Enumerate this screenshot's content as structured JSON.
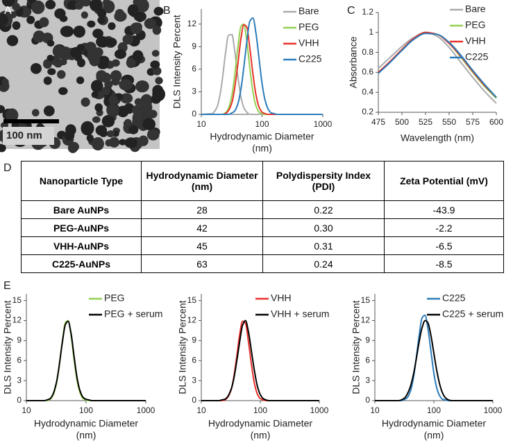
{
  "image": {
    "panel_label": "A",
    "scale_bar": "100 nm"
  },
  "chart_data": [
    {
      "type": "line",
      "panel_label": "B",
      "ylabel": "DLS Intensity Percent",
      "xlabel": [
        "Hydrodynamic Diameter",
        "(nm)"
      ],
      "log_x": true,
      "xlim": [
        10,
        1000
      ],
      "xticks": [
        10,
        100,
        1000
      ],
      "ylim": [
        0,
        14
      ],
      "yticks": [
        0,
        3,
        6,
        9,
        12
      ],
      "legend": "upper right",
      "x": [
        10,
        15,
        18,
        20,
        22,
        25,
        28,
        32,
        35,
        40,
        45,
        50,
        56,
        63,
        71,
        79,
        89,
        100,
        112,
        126,
        141,
        158,
        178,
        200,
        300,
        1000
      ],
      "series": [
        {
          "name": "Bare",
          "color": "#aaaaaa",
          "values": [
            0,
            0.1,
            0.9,
            2.3,
            4.4,
            8.1,
            10.5,
            10.6,
            8.8,
            5.0,
            2.3,
            0.9,
            0.3,
            0,
            0,
            0,
            0,
            0,
            0,
            0,
            0,
            0,
            0,
            0,
            0,
            0
          ]
        },
        {
          "name": "PEG",
          "color": "#92d050",
          "values": [
            0,
            0,
            0,
            0,
            0,
            0.2,
            0.8,
            2.6,
            4.8,
            8.9,
            11.7,
            12.0,
            9.8,
            6.1,
            2.9,
            1.2,
            0.3,
            0.1,
            0,
            0,
            0,
            0,
            0,
            0,
            0,
            0
          ]
        },
        {
          "name": "VHH",
          "color": "#e8302a",
          "values": [
            0,
            0,
            0,
            0,
            0,
            0.1,
            0.5,
            1.6,
            3.2,
            6.7,
            10.1,
            11.9,
            11.6,
            8.8,
            5.3,
            2.7,
            1.0,
            0.3,
            0.1,
            0,
            0,
            0,
            0,
            0,
            0,
            0
          ]
        },
        {
          "name": "C225",
          "color": "#2b7bba",
          "values": [
            0,
            0,
            0,
            0,
            0,
            0,
            0,
            0.2,
            0.4,
            1.4,
            3.4,
            6.2,
            9.6,
            12.4,
            12.8,
            10.9,
            7.5,
            4.1,
            1.9,
            0.7,
            0.2,
            0.1,
            0,
            0,
            0,
            0
          ]
        }
      ]
    },
    {
      "type": "line",
      "panel_label": "C",
      "ylabel": "Absorbance",
      "xlabel": [
        "Wavelength (nm)"
      ],
      "log_x": false,
      "xlim": [
        475,
        600
      ],
      "xticks": [
        475,
        500,
        525,
        550,
        575,
        600
      ],
      "ylim": [
        0.2,
        1.2
      ],
      "yticks": [
        0.2,
        0.4,
        0.6,
        0.8,
        1,
        1.2
      ],
      "legend": "upper right",
      "x": [
        475,
        487.5,
        500,
        512.5,
        525,
        537.5,
        550,
        562.5,
        575,
        587.5,
        600
      ],
      "series": [
        {
          "name": "Bare",
          "color": "#aaaaaa",
          "values": [
            0.64,
            0.75,
            0.86,
            0.95,
            1.0,
            0.96,
            0.85,
            0.7,
            0.55,
            0.41,
            0.29
          ]
        },
        {
          "name": "PEG",
          "color": "#92d050",
          "values": [
            0.6,
            0.71,
            0.83,
            0.94,
            1.0,
            0.98,
            0.89,
            0.75,
            0.6,
            0.46,
            0.34
          ]
        },
        {
          "name": "VHH",
          "color": "#e8302a",
          "values": [
            0.6,
            0.71,
            0.83,
            0.94,
            1.0,
            0.98,
            0.89,
            0.76,
            0.61,
            0.47,
            0.35
          ]
        },
        {
          "name": "C225",
          "color": "#2b7bba",
          "values": [
            0.59,
            0.7,
            0.82,
            0.93,
            0.99,
            0.98,
            0.9,
            0.77,
            0.62,
            0.48,
            0.35
          ]
        }
      ]
    },
    {
      "type": "line",
      "panel_label": "E",
      "ylabel": "DLS Intensity Percent",
      "xlabel": [
        "Hydrodynamic Diameter",
        "(nm)"
      ],
      "log_x": true,
      "xlim": [
        10,
        1000
      ],
      "xticks": [
        10,
        100,
        1000
      ],
      "ylim": [
        0,
        16
      ],
      "yticks": [
        0,
        3,
        6,
        9,
        12,
        15
      ],
      "legend": "upper right",
      "x": [
        10,
        15,
        18,
        20,
        22,
        25,
        28,
        32,
        35,
        40,
        45,
        50,
        56,
        63,
        71,
        79,
        89,
        100,
        112,
        126,
        141,
        158,
        178,
        200,
        300,
        1000
      ],
      "series": [
        {
          "name": "PEG",
          "color": "#92d050",
          "values": [
            0,
            0,
            0,
            0,
            0,
            0.2,
            0.8,
            2.6,
            4.8,
            8.9,
            11.7,
            12.0,
            9.8,
            6.1,
            2.9,
            1.2,
            0.3,
            0.1,
            0,
            0,
            0,
            0,
            0,
            0,
            0,
            0
          ]
        },
        {
          "name": "PEG + serum",
          "color": "#000000",
          "values": [
            0,
            0,
            0,
            0,
            0.1,
            0.3,
            1.0,
            2.8,
            4.9,
            8.7,
            11.4,
            11.9,
            10.1,
            6.6,
            3.3,
            1.5,
            0.5,
            0.2,
            0.1,
            0,
            0,
            0,
            0,
            0,
            0,
            0
          ]
        }
      ]
    },
    {
      "type": "line",
      "ylabel": "DLS Intensity Percent",
      "xlabel": [
        "Hydrodynamic Diameter",
        "(nm)"
      ],
      "log_x": true,
      "xlim": [
        10,
        1000
      ],
      "xticks": [
        10,
        100,
        1000
      ],
      "ylim": [
        0,
        16
      ],
      "yticks": [
        0,
        3,
        6,
        9,
        12,
        15
      ],
      "legend": "upper right",
      "x": [
        10,
        15,
        18,
        20,
        22,
        25,
        28,
        32,
        35,
        40,
        45,
        50,
        56,
        63,
        71,
        79,
        89,
        100,
        112,
        126,
        141,
        158,
        178,
        200,
        300,
        1000
      ],
      "series": [
        {
          "name": "VHH",
          "color": "#e8302a",
          "values": [
            0,
            0,
            0,
            0,
            0,
            0.1,
            0.5,
            1.6,
            3.2,
            6.7,
            10.1,
            11.9,
            11.6,
            8.8,
            5.3,
            2.7,
            1.0,
            0.3,
            0.1,
            0,
            0,
            0,
            0,
            0,
            0,
            0
          ]
        },
        {
          "name": "VHH + serum",
          "color": "#000000",
          "values": [
            0,
            0,
            0,
            0,
            0.1,
            0.2,
            0.6,
            1.7,
            3.0,
            6.0,
            9.0,
            11.3,
            12.0,
            10.3,
            7.3,
            4.6,
            2.2,
            0.9,
            0.3,
            0.1,
            0,
            0,
            0,
            0,
            0,
            0
          ]
        }
      ]
    },
    {
      "type": "line",
      "ylabel": "DLS Intensity Percent",
      "xlabel": [
        "Hydrodynamic Diameter",
        "(nm)"
      ],
      "log_x": true,
      "xlim": [
        10,
        1000
      ],
      "xticks": [
        10,
        100,
        1000
      ],
      "ylim": [
        0,
        16
      ],
      "yticks": [
        0,
        3,
        6,
        9,
        12,
        15
      ],
      "legend": "upper right",
      "x": [
        10,
        15,
        18,
        20,
        22,
        25,
        28,
        32,
        35,
        40,
        45,
        50,
        56,
        63,
        71,
        79,
        89,
        100,
        112,
        126,
        141,
        158,
        178,
        200,
        300,
        1000
      ],
      "series": [
        {
          "name": "C225",
          "color": "#2b7bba",
          "values": [
            0,
            0,
            0,
            0,
            0,
            0,
            0,
            0.2,
            0.4,
            1.4,
            3.4,
            6.2,
            9.6,
            12.4,
            12.8,
            10.9,
            7.5,
            4.1,
            1.9,
            0.7,
            0.2,
            0.1,
            0,
            0,
            0,
            0
          ]
        },
        {
          "name": "C225 + serum",
          "color": "#000000",
          "values": [
            0,
            0,
            0,
            0,
            0,
            0,
            0.1,
            0.4,
            0.9,
            2.1,
            3.9,
            6.1,
            8.7,
            10.9,
            12.0,
            11.7,
            9.8,
            7.1,
            4.5,
            2.4,
            1.1,
            0.4,
            0.1,
            0,
            0,
            0
          ]
        }
      ]
    }
  ],
  "table": {
    "panel_label": "D",
    "header": [
      "Nanoparticle Type",
      "Hydrodynamic Diameter (nm)",
      "Polydispersity Index (PDI)",
      "Zeta Potential (mV)"
    ],
    "rows": [
      [
        "Bare AuNPs",
        "28",
        "0.22",
        "-43.9"
      ],
      [
        "PEG-AuNPs",
        "42",
        "0.30",
        "-2.2"
      ],
      [
        "VHH-AuNPs",
        "45",
        "0.31",
        "-6.5"
      ],
      [
        "C225-AuNPs",
        "63",
        "0.24",
        "-8.5"
      ]
    ]
  }
}
